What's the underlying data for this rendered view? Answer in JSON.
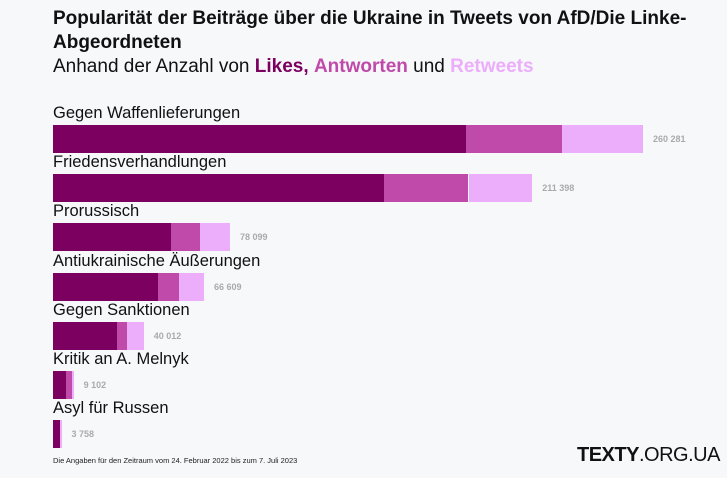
{
  "chart_data": {
    "type": "bar",
    "orientation": "horizontal",
    "stacked": true,
    "title": "Popularität der Beiträge über die Ukraine in Tweets von AfD/Die Linke-Abgeordneten",
    "subtitle_prefix": "Anhand der Anzahl von",
    "subtitle_mid": "und",
    "categories": [
      "Gegen Waffenlieferungen",
      "Friedensverhandlungen",
      "Prorussisch",
      "Antiukrainische Äußerungen",
      "Gegen Sanktionen",
      "Kritik an A. Melnyk",
      "Asyl für Russen"
    ],
    "series": [
      {
        "name": "Likes,",
        "color": "#7b005f",
        "values": [
          182300,
          146000,
          52200,
          46500,
          28100,
          5900,
          3250
        ]
      },
      {
        "name": "Antworten",
        "color": "#c04aaa",
        "values": [
          42100,
          37300,
          12700,
          9300,
          4700,
          2500,
          0
        ]
      },
      {
        "name": "Retweets",
        "color": "#ecadfb",
        "values": [
          35881,
          28098,
          13199,
          10809,
          7212,
          702,
          508
        ]
      }
    ],
    "totals": [
      260281,
      211398,
      78099,
      66609,
      40012,
      9102,
      3758
    ],
    "total_labels": [
      "260 281",
      "211 398",
      "78 099",
      "66 609",
      "40 012",
      "9 102",
      "3 758"
    ],
    "xlim": [
      0,
      260281
    ]
  },
  "footnote": "Die Angaben für den Zeitraum vom 24. Februar 2022 bis zum 7. Juli 2023",
  "logo": {
    "bold": "TEXTY",
    "rest": ".ORG.UA"
  }
}
